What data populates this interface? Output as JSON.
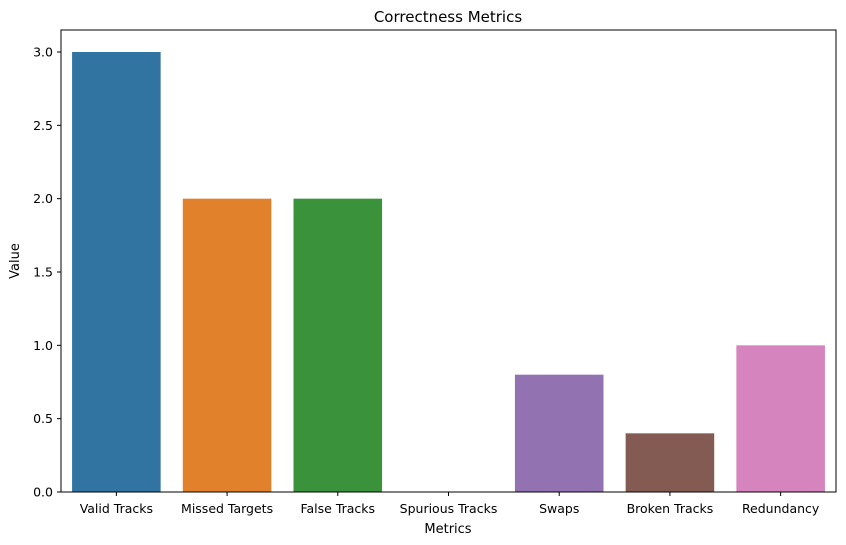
{
  "chart_data": {
    "type": "bar",
    "title": "Correctness Metrics",
    "xlabel": "Metrics",
    "ylabel": "Value",
    "categories": [
      "Valid Tracks",
      "Missed Targets",
      "False Tracks",
      "Spurious Tracks",
      "Swaps",
      "Broken Tracks",
      "Redundancy"
    ],
    "values": [
      3.0,
      2.0,
      2.0,
      0.0,
      0.8,
      0.4,
      1.0
    ],
    "colors": [
      "#3274a1",
      "#e1812c",
      "#3a923a",
      "#c03d3e",
      "#9372b2",
      "#845b53",
      "#d684bd"
    ],
    "ylim": [
      0,
      3.15
    ],
    "yticks": [
      0.0,
      0.5,
      1.0,
      1.5,
      2.0,
      2.5,
      3.0
    ],
    "ytick_labels": [
      "0.0",
      "0.5",
      "1.0",
      "1.5",
      "2.0",
      "2.5",
      "3.0"
    ],
    "grid": false,
    "legend": "none"
  }
}
